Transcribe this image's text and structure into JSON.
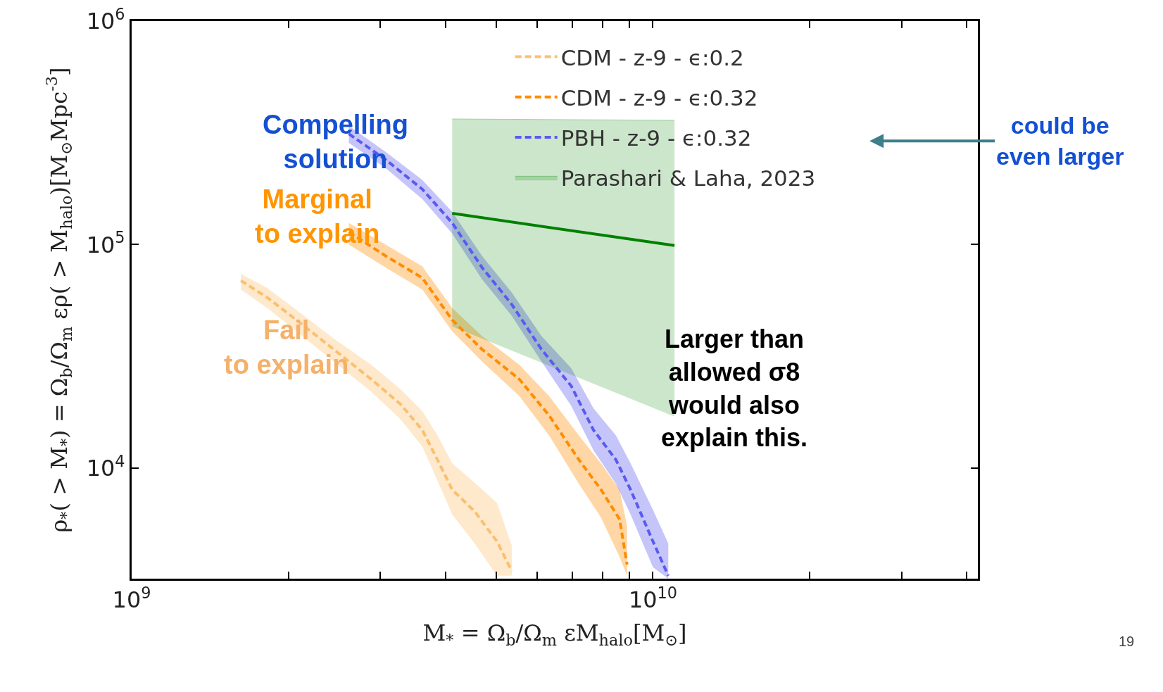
{
  "chart_data": {
    "type": "line",
    "xlabel": "M$_{*}$ = Ω$_{b}$/Ω$_{m}$ εM$_{halo}$[M$_{⊙}$]",
    "ylabel": "ρ$_{*}$( > M$_{*}$) = Ω$_{b}$/Ω$_{m}$ ερ( > M$_{halo}$)[M$_{⊙}$Mpc$^{-3}$]",
    "log": "xy",
    "legend": "top right",
    "grid": false,
    "xlim": [
      1000000000.0,
      42000000000.0
    ],
    "ylim": [
      3200,
      1000000.0
    ],
    "xticks": [
      {
        "value": 1000000000.0,
        "label": "10$^{9}$"
      },
      {
        "value": 2000000000.0,
        "label": null
      },
      {
        "value": 3000000000.0,
        "label": null
      },
      {
        "value": 4000000000.0,
        "label": null
      },
      {
        "value": 5000000000.0,
        "label": null
      },
      {
        "value": 6000000000.0,
        "label": null
      },
      {
        "value": 7000000000.0,
        "label": null
      },
      {
        "value": 8000000000.0,
        "label": null
      },
      {
        "value": 9000000000.0,
        "label": null
      },
      {
        "value": 10000000000.0,
        "label": "10$^{10}$"
      },
      {
        "value": 20000000000.0,
        "label": null
      },
      {
        "value": 30000000000.0,
        "label": null
      },
      {
        "value": 40000000000.0,
        "label": null
      }
    ],
    "yticks": [
      {
        "value": 10000.0,
        "label": "10$^{4}$"
      },
      {
        "value": 100000.0,
        "label": "10$^{5}$"
      },
      {
        "value": 1000000.0,
        "label": "10$^{6}$"
      }
    ],
    "series": [
      {
        "name": "CDM - z-9 - ϵ:0.2",
        "color": "#fbbf6e",
        "line_style": "dashed",
        "x": [
          1620000000.0,
          1820000000.0,
          2070000000.0,
          2440000000.0,
          2880000000.0,
          3280000000.0,
          3610000000.0,
          3860000000.0,
          4120000000.0,
          4550000000.0,
          5020000000.0,
          5360000000.0
        ],
        "values": [
          69000,
          58000,
          46000,
          34000,
          25000,
          19300,
          14800,
          10900,
          8000,
          6400,
          4700,
          3460
        ],
        "lower": [
          63000,
          52000,
          41000,
          30000,
          22000,
          16500,
          12500,
          8800,
          6200,
          4600,
          3300,
          3300
        ],
        "upper": [
          74000,
          64000,
          51000,
          38000,
          29000,
          22500,
          18000,
          14000,
          10500,
          8600,
          7000,
          4500
        ]
      },
      {
        "name": "CDM - z-9 - ϵ:0.32",
        "color": "#ff8c00",
        "line_style": "dashed",
        "x": [
          2610000000.0,
          3070000000.0,
          3610000000.0,
          4120000000.0,
          4700000000.0,
          5540000000.0,
          6320000000.0,
          7210000000.0,
          7950000000.0,
          8630000000.0,
          8920000000.0
        ],
        "values": [
          114000,
          89000,
          71000,
          46000,
          34000,
          25000,
          17200,
          10900,
          8000,
          5900,
          3700
        ],
        "lower": [
          100000,
          79000,
          63000,
          41000,
          30000,
          21000,
          14000,
          8500,
          6000,
          4000,
          3300
        ],
        "upper": [
          125000,
          100000,
          80000,
          52000,
          39000,
          29000,
          21000,
          14000,
          10500,
          8000,
          5500
        ]
      },
      {
        "name": "PBH - z-9 - ϵ:0.32",
        "color": "#5a5af0",
        "line_style": "dashed",
        "x": [
          2610000000.0,
          3070000000.0,
          3610000000.0,
          4120000000.0,
          4700000000.0,
          5360000000.0,
          6110000000.0,
          6970000000.0,
          7690000000.0,
          8490000000.0,
          9060000000.0,
          10000000000.0,
          10700000000.0
        ],
        "values": [
          313000,
          240000,
          177000,
          125000,
          79000,
          54000,
          34000,
          23300,
          14800,
          10900,
          8000,
          4700,
          3300
        ],
        "lower": [
          285000,
          220000,
          160000,
          112000,
          70000,
          48000,
          30000,
          19000,
          12000,
          8500,
          6200,
          3600,
          3200
        ],
        "upper": [
          340000,
          260000,
          195000,
          140000,
          89000,
          61000,
          39000,
          28000,
          18500,
          14000,
          10500,
          6500,
          4600
        ]
      },
      {
        "name": "Parashari & Laha, 2023",
        "color": "#008000",
        "line_style": "solid",
        "x": [
          4120000000.0,
          11000000000.0
        ],
        "values": [
          138000,
          99000
        ],
        "lower": [
          43000,
          17000
        ],
        "upper": [
          365000,
          360000
        ]
      }
    ],
    "annotations": [
      "Compelling solution",
      "Marginal to explain",
      "Fail to explain",
      "Larger than allowed σ8 would also explain this.",
      "could be even larger",
      "19"
    ]
  }
}
